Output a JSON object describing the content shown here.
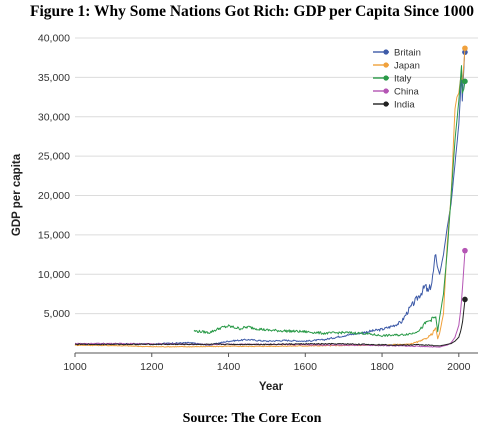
{
  "figure_title": "Figure 1: Why Some Nations Got Rich: GDP per Capita Since 1000",
  "source": "Source: The Core Econ",
  "chart_data": {
    "type": "line",
    "title": "Figure 1: Why Some Nations Got Rich: GDP per Capita Since 1000",
    "xlabel": "Year",
    "ylabel": "GDP per capita",
    "xlim": [
      1000,
      2050
    ],
    "ylim": [
      0,
      40000
    ],
    "x_ticks": [
      "1000",
      "1200",
      "1400",
      "1600",
      "1800",
      "2000"
    ],
    "y_ticks": [
      "5,000",
      "10,000",
      "15,000",
      "20,000",
      "25,000",
      "30,000",
      "35,000",
      "40,000"
    ],
    "grid": "horizontal",
    "legend_position": "top-right",
    "series": [
      {
        "name": "Britain",
        "color": "#3e5ba8",
        "end_marker": true,
        "points": [
          [
            1000,
            1100
          ],
          [
            1100,
            1150
          ],
          [
            1200,
            1150
          ],
          [
            1250,
            1250
          ],
          [
            1300,
            1300
          ],
          [
            1348,
            1000
          ],
          [
            1400,
            1500
          ],
          [
            1450,
            1700
          ],
          [
            1500,
            1500
          ],
          [
            1550,
            1600
          ],
          [
            1600,
            1500
          ],
          [
            1650,
            1700
          ],
          [
            1700,
            2200
          ],
          [
            1750,
            2600
          ],
          [
            1800,
            3000
          ],
          [
            1820,
            3300
          ],
          [
            1850,
            3900
          ],
          [
            1870,
            5500
          ],
          [
            1900,
            7500
          ],
          [
            1913,
            8500
          ],
          [
            1920,
            7700
          ],
          [
            1930,
            9000
          ],
          [
            1940,
            12500
          ],
          [
            1944,
            11000
          ],
          [
            1950,
            10000
          ],
          [
            1960,
            12500
          ],
          [
            1970,
            16000
          ],
          [
            1980,
            19000
          ],
          [
            1990,
            24000
          ],
          [
            2000,
            29000
          ],
          [
            2007,
            35500
          ],
          [
            2009,
            32000
          ],
          [
            2015,
            38000
          ],
          [
            2016,
            38200
          ]
        ]
      },
      {
        "name": "Japan",
        "color": "#f0a13c",
        "end_marker": true,
        "points": [
          [
            1000,
            1000
          ],
          [
            1100,
            950
          ],
          [
            1200,
            800
          ],
          [
            1300,
            800
          ],
          [
            1400,
            850
          ],
          [
            1500,
            850
          ],
          [
            1600,
            900
          ],
          [
            1700,
            950
          ],
          [
            1800,
            1000
          ],
          [
            1850,
            1100
          ],
          [
            1870,
            1100
          ],
          [
            1900,
            1500
          ],
          [
            1913,
            1800
          ],
          [
            1930,
            2400
          ],
          [
            1940,
            3200
          ],
          [
            1945,
            1800
          ],
          [
            1950,
            2500
          ],
          [
            1960,
            5000
          ],
          [
            1970,
            14000
          ],
          [
            1980,
            20000
          ],
          [
            1990,
            31000
          ],
          [
            1995,
            32500
          ],
          [
            2000,
            33000
          ],
          [
            2005,
            35000
          ],
          [
            2010,
            34500
          ],
          [
            2016,
            38700
          ]
        ]
      },
      {
        "name": "Italy",
        "color": "#2a9a48",
        "end_marker": true,
        "points": [
          [
            1310,
            2800
          ],
          [
            1350,
            2600
          ],
          [
            1380,
            3200
          ],
          [
            1400,
            3400
          ],
          [
            1430,
            3100
          ],
          [
            1450,
            3300
          ],
          [
            1500,
            2900
          ],
          [
            1550,
            2800
          ],
          [
            1600,
            2700
          ],
          [
            1650,
            2500
          ],
          [
            1700,
            2600
          ],
          [
            1750,
            2500
          ],
          [
            1800,
            2200
          ],
          [
            1850,
            2300
          ],
          [
            1880,
            2500
          ],
          [
            1900,
            3000
          ],
          [
            1913,
            3800
          ],
          [
            1930,
            4300
          ],
          [
            1940,
            4600
          ],
          [
            1945,
            2700
          ],
          [
            1950,
            4500
          ],
          [
            1960,
            7500
          ],
          [
            1970,
            13000
          ],
          [
            1980,
            20000
          ],
          [
            1990,
            27000
          ],
          [
            2000,
            32000
          ],
          [
            2007,
            36500
          ],
          [
            2009,
            33000
          ],
          [
            2013,
            33500
          ],
          [
            2016,
            34500
          ]
        ]
      },
      {
        "name": "China",
        "color": "#b455b4",
        "end_marker": true,
        "points": [
          [
            1000,
            1200
          ],
          [
            1100,
            1200
          ],
          [
            1200,
            1150
          ],
          [
            1300,
            1100
          ],
          [
            1400,
            1100
          ],
          [
            1500,
            1100
          ],
          [
            1600,
            1050
          ],
          [
            1700,
            1000
          ],
          [
            1800,
            950
          ],
          [
            1850,
            900
          ],
          [
            1900,
            850
          ],
          [
            1950,
            750
          ],
          [
            1960,
            900
          ],
          [
            1970,
            1000
          ],
          [
            1980,
            1300
          ],
          [
            1990,
            2000
          ],
          [
            2000,
            3500
          ],
          [
            2005,
            5500
          ],
          [
            2010,
            8500
          ],
          [
            2016,
            13000
          ]
        ]
      },
      {
        "name": "India",
        "color": "#222222",
        "end_marker": true,
        "points": [
          [
            1000,
            1100
          ],
          [
            1100,
            1100
          ],
          [
            1200,
            1100
          ],
          [
            1300,
            1100
          ],
          [
            1400,
            1100
          ],
          [
            1500,
            1100
          ],
          [
            1600,
            1150
          ],
          [
            1700,
            1150
          ],
          [
            1800,
            1050
          ],
          [
            1850,
            1000
          ],
          [
            1900,
            1050
          ],
          [
            1950,
            900
          ],
          [
            1960,
            1000
          ],
          [
            1970,
            1100
          ],
          [
            1980,
            1200
          ],
          [
            1990,
            1500
          ],
          [
            2000,
            2000
          ],
          [
            2005,
            2800
          ],
          [
            2010,
            4000
          ],
          [
            2016,
            6800
          ]
        ]
      }
    ]
  }
}
